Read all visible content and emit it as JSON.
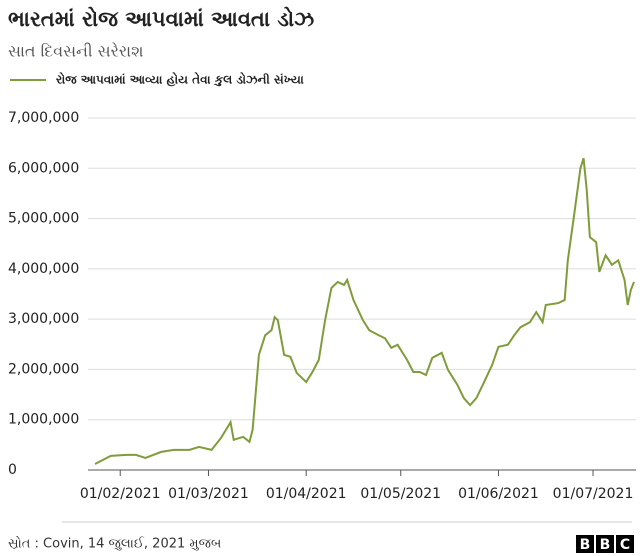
{
  "chart_data": {
    "type": "line",
    "title": "ભારતમાં રોજ આપવામાં આવતા ડોઝ",
    "subtitle": "સાત દિવસની સરેરાશ",
    "source": "સ્રોત : Covin, 14 જુલાઈ, 2021 મુજબ",
    "logo": [
      "B",
      "B",
      "C"
    ],
    "x": [
      "2021-01-24",
      "2021-01-29",
      "2021-02-03",
      "2021-02-06",
      "2021-02-09",
      "2021-02-14",
      "2021-02-18",
      "2021-02-23",
      "2021-02-26",
      "2021-03-02",
      "2021-03-05",
      "2021-03-08",
      "2021-03-09",
      "2021-03-12",
      "2021-03-14",
      "2021-03-15",
      "2021-03-17",
      "2021-03-19",
      "2021-03-21",
      "2021-03-22",
      "2021-03-23",
      "2021-03-25",
      "2021-03-27",
      "2021-03-29",
      "2021-04-01",
      "2021-04-03",
      "2021-04-05",
      "2021-04-07",
      "2021-04-09",
      "2021-04-11",
      "2021-04-13",
      "2021-04-14",
      "2021-04-16",
      "2021-04-19",
      "2021-04-21",
      "2021-04-24",
      "2021-04-26",
      "2021-04-28",
      "2021-04-30",
      "2021-05-03",
      "2021-05-05",
      "2021-05-07",
      "2021-05-09",
      "2021-05-11",
      "2021-05-14",
      "2021-05-16",
      "2021-05-19",
      "2021-05-21",
      "2021-05-23",
      "2021-05-25",
      "2021-05-27",
      "2021-05-30",
      "2021-06-01",
      "2021-06-04",
      "2021-06-06",
      "2021-06-08",
      "2021-06-11",
      "2021-06-13",
      "2021-06-15",
      "2021-06-16",
      "2021-06-20",
      "2021-06-22",
      "2021-06-23",
      "2021-06-25",
      "2021-06-27",
      "2021-06-28",
      "2021-06-29",
      "2021-06-30",
      "2021-07-02",
      "2021-07-03",
      "2021-07-05",
      "2021-07-07",
      "2021-07-09",
      "2021-07-11",
      "2021-07-12",
      "2021-07-13",
      "2021-07-14"
    ],
    "series": [
      {
        "name": "રોજ આપવામાં આવ્યા હોય તેવા કુલ ડોઝની સંખ્યા",
        "color": "#7f9c3a",
        "values": [
          120000,
          280000,
          300000,
          300000,
          240000,
          360000,
          400000,
          400000,
          460000,
          400000,
          640000,
          950000,
          600000,
          660000,
          560000,
          800000,
          2290000,
          2680000,
          2780000,
          3040000,
          2980000,
          2290000,
          2250000,
          1930000,
          1750000,
          1950000,
          2190000,
          2980000,
          3620000,
          3740000,
          3680000,
          3780000,
          3380000,
          2980000,
          2780000,
          2680000,
          2620000,
          2430000,
          2490000,
          2190000,
          1950000,
          1950000,
          1890000,
          2230000,
          2330000,
          1990000,
          1690000,
          1430000,
          1290000,
          1430000,
          1690000,
          2090000,
          2450000,
          2490000,
          2680000,
          2840000,
          2940000,
          3140000,
          2940000,
          3280000,
          3320000,
          3380000,
          4170000,
          5070000,
          6000000,
          6200000,
          5570000,
          4630000,
          4530000,
          3940000,
          4270000,
          4080000,
          4170000,
          3780000,
          3280000,
          3580000,
          3740000
        ]
      }
    ],
    "xlim": [
      "2021-01-24",
      "2021-07-14"
    ],
    "xticks": [
      {
        "value": "2021-02-01",
        "label": "01/02/2021"
      },
      {
        "value": "2021-03-01",
        "label": "01/03/2021"
      },
      {
        "value": "2021-04-01",
        "label": "01/04/2021"
      },
      {
        "value": "2021-05-01",
        "label": "01/05/2021"
      },
      {
        "value": "2021-06-01",
        "label": "01/06/2021"
      },
      {
        "value": "2021-07-01",
        "label": "01/07/2021"
      }
    ],
    "ylim": [
      0,
      7000000
    ],
    "yticks": [
      0,
      {
        "value": 1000000,
        "label": "1,000,000"
      },
      {
        "value": 2000000,
        "label": "2,000,000"
      },
      {
        "value": 3000000,
        "label": "3,000,000"
      },
      {
        "value": 4000000,
        "label": "4,000,000"
      },
      {
        "value": 5000000,
        "label": "5,000,000"
      },
      {
        "value": 6000000,
        "label": "6,000,000"
      },
      {
        "value": 7000000,
        "label": "7,000,000"
      }
    ],
    "grid": true
  }
}
